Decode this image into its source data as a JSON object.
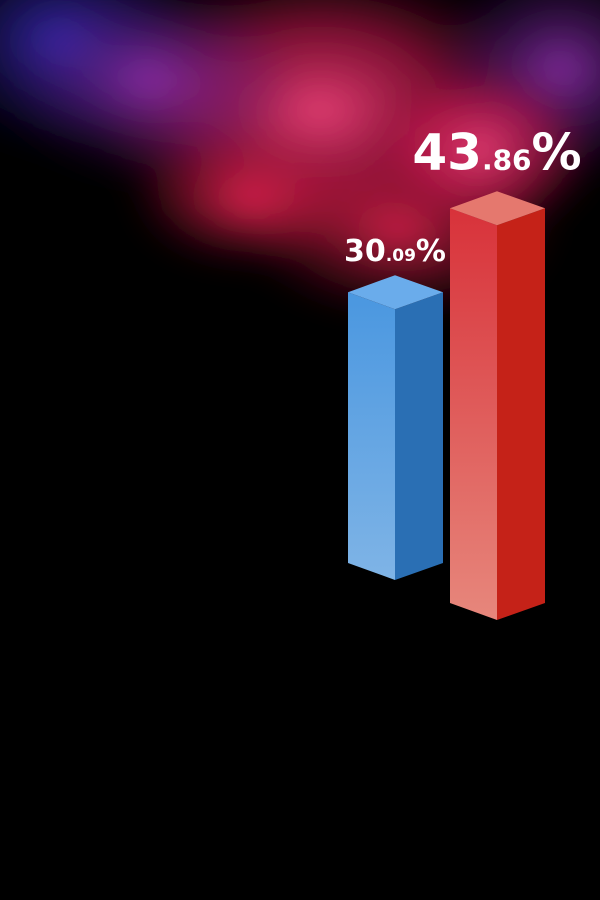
{
  "chart_data": {
    "type": "bar",
    "style": "3d-isometric",
    "values": [
      30.09,
      43.86
    ],
    "labels": [
      {
        "int": "30",
        "dec": ".09",
        "unit": "%"
      },
      {
        "int": "43",
        "dec": ".86",
        "unit": "%"
      }
    ],
    "colors": {
      "bar1_front_top": "#4a97e0",
      "bar1_front_bottom": "#7fb4e6",
      "bar1_side": "#2a6fb4",
      "bar1_top": "#6aaceb",
      "bar2_front_top": "#d8323a",
      "bar2_front_bottom": "#e7877c",
      "bar2_side": "#c52218",
      "bar2_top": "#e5786e"
    },
    "background": {
      "base": "#000000",
      "smoke": [
        "#e8336a",
        "#b5154a",
        "#8a2a9a",
        "#3a2ab0"
      ]
    }
  }
}
